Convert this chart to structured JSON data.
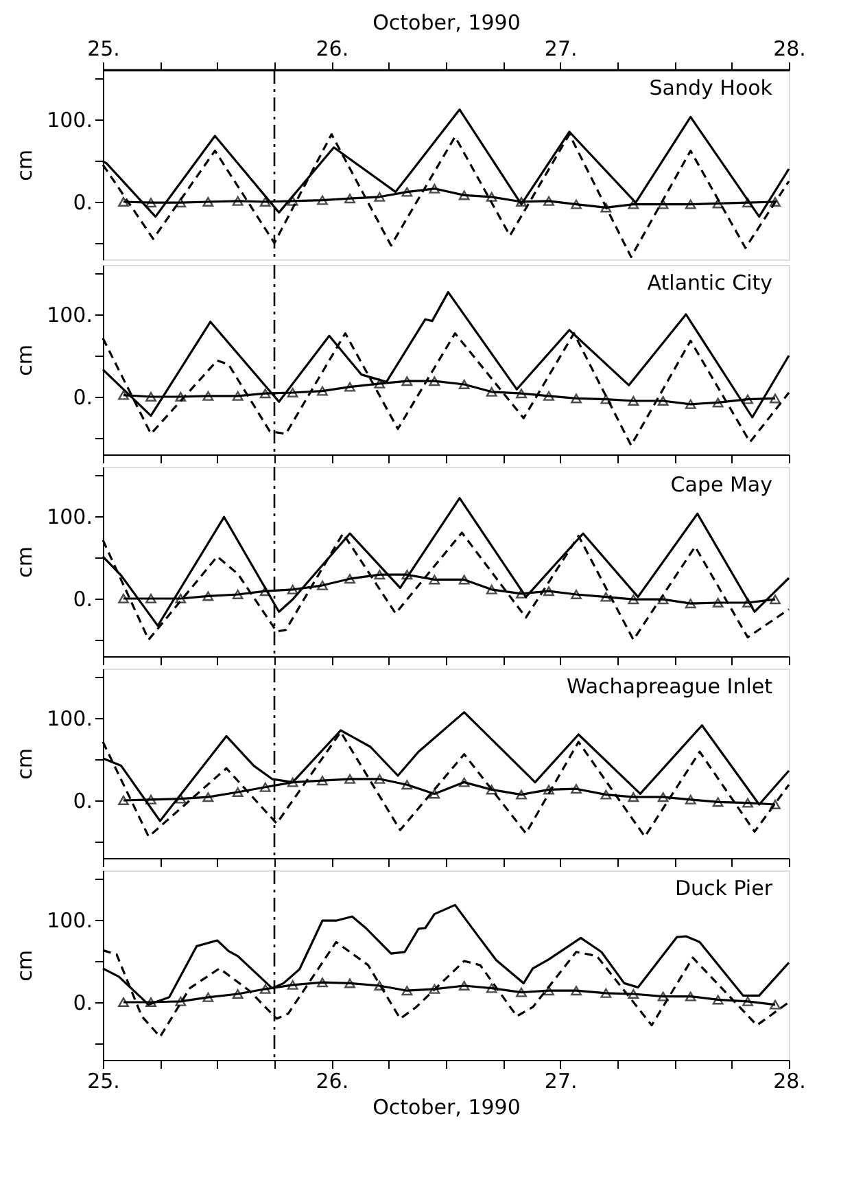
{
  "chart_data": [
    {
      "type": "line",
      "title": "Sandy Hook",
      "ylabel": "cm",
      "x2label": "October, 1990",
      "xlim": [
        25,
        28
      ],
      "x2lim": [
        25,
        28
      ],
      "x2ticks": [
        {
          "value": 25,
          "label": "25."
        },
        {
          "value": 25.25,
          "label": null
        },
        {
          "value": 25.5,
          "label": null
        },
        {
          "value": 25.75,
          "label": null
        },
        {
          "value": 26,
          "label": "26."
        },
        {
          "value": 26.25,
          "label": null
        },
        {
          "value": 26.5,
          "label": null
        },
        {
          "value": 26.75,
          "label": null
        },
        {
          "value": 27,
          "label": "27."
        },
        {
          "value": 27.25,
          "label": null
        },
        {
          "value": 27.5,
          "label": null
        },
        {
          "value": 27.75,
          "label": null
        },
        {
          "value": 28,
          "label": "28."
        }
      ],
      "ylim": [
        -70,
        160
      ],
      "yticks": [
        {
          "value": -50,
          "label": null
        },
        {
          "value": 0,
          "label": "0."
        },
        {
          "value": 50,
          "label": null
        },
        {
          "value": 100,
          "label": "100."
        },
        {
          "value": 150,
          "label": null
        }
      ],
      "ref_lines": [
        {
          "axis": "x",
          "value": 25.75,
          "line_style": "dashed",
          "color": "#000000"
        }
      ],
      "series": [
        {
          "color": "#000000",
          "line_style": "solid",
          "x": [
            25.0,
            25.015,
            25.23,
            25.49,
            25.77,
            26.01,
            26.28,
            26.56,
            26.83,
            27.04,
            27.33,
            27.57,
            27.87,
            28.0
          ],
          "values": [
            49,
            47,
            -18,
            80,
            -13,
            66,
            12,
            112,
            -3,
            85,
            -1,
            103,
            -18,
            40
          ]
        },
        {
          "color": "#000000",
          "line_style": "dashed",
          "x": [
            25.0,
            25.22,
            25.49,
            25.75,
            26.0,
            26.26,
            26.54,
            26.78,
            27.04,
            27.31,
            27.57,
            27.81,
            28.0
          ],
          "values": [
            45,
            -45,
            62,
            -50,
            82,
            -53,
            79,
            -41,
            82,
            -67,
            62,
            -56,
            25
          ]
        },
        {
          "color": "#000000",
          "line_style": "solid",
          "marker": "triangle",
          "x": [
            25.09,
            25.21,
            25.34,
            25.46,
            25.59,
            25.71,
            25.83,
            25.96,
            26.08,
            26.21,
            26.33,
            26.45,
            26.58,
            26.7,
            26.83,
            26.95,
            27.07,
            27.2,
            27.32,
            27.45,
            27.57,
            27.69,
            27.82,
            27.94
          ],
          "values": [
            0,
            -1,
            -1,
            0,
            1,
            0,
            1,
            2,
            4,
            6,
            12,
            16,
            8,
            6,
            0,
            1,
            -3,
            -7,
            -3,
            -3,
            -3,
            -2,
            -1,
            0
          ]
        }
      ]
    },
    {
      "type": "line",
      "title": "Atlantic City",
      "ylabel": "cm",
      "tick_labels": "y",
      "xlim": [
        25,
        28
      ],
      "xticks": [
        {
          "value": 25,
          "label": null
        },
        {
          "value": 25.25,
          "label": null
        },
        {
          "value": 25.5,
          "label": null
        },
        {
          "value": 25.75,
          "label": null
        },
        {
          "value": 26,
          "label": null
        },
        {
          "value": 26.25,
          "label": null
        },
        {
          "value": 26.5,
          "label": null
        },
        {
          "value": 26.75,
          "label": null
        },
        {
          "value": 27,
          "label": null
        },
        {
          "value": 27.25,
          "label": null
        },
        {
          "value": 27.5,
          "label": null
        },
        {
          "value": 27.75,
          "label": null
        },
        {
          "value": 28,
          "label": null
        }
      ],
      "ylim": [
        -70,
        160
      ],
      "yticks": [
        {
          "value": -50,
          "label": null
        },
        {
          "value": 0,
          "label": "0."
        },
        {
          "value": 50,
          "label": null
        },
        {
          "value": 100,
          "label": "100."
        },
        {
          "value": 150,
          "label": null
        }
      ],
      "ref_lines": [
        {
          "axis": "x",
          "value": 25.75,
          "line_style": "dashed",
          "color": "#000000"
        }
      ],
      "series": [
        {
          "color": "#000000",
          "line_style": "solid",
          "x": [
            25.0,
            25.21,
            25.47,
            25.77,
            25.99,
            26.13,
            26.24,
            26.41,
            26.44,
            26.51,
            26.81,
            27.04,
            27.3,
            27.55,
            27.84,
            28.0
          ],
          "values": [
            33,
            -23,
            91,
            -6,
            74,
            27,
            18,
            94,
            92,
            127,
            9,
            81,
            14,
            100,
            -25,
            50
          ]
        },
        {
          "color": "#000000",
          "line_style": "dashed",
          "x": [
            25.0,
            25.21,
            25.5,
            25.55,
            25.73,
            25.8,
            26.06,
            26.29,
            26.54,
            26.84,
            27.06,
            27.31,
            27.57,
            27.83,
            28.0
          ],
          "values": [
            71,
            -45,
            44,
            39,
            -42,
            -45,
            77,
            -39,
            77,
            -26,
            77,
            -59,
            68,
            -55,
            5
          ]
        },
        {
          "color": "#000000",
          "line_style": "solid",
          "marker": "triangle",
          "x": [
            25.09,
            25.21,
            25.34,
            25.46,
            25.59,
            25.71,
            25.83,
            25.96,
            26.08,
            26.21,
            26.33,
            26.45,
            26.58,
            26.7,
            26.83,
            26.95,
            27.07,
            27.2,
            27.32,
            27.45,
            27.57,
            27.69,
            27.82,
            27.94
          ],
          "values": [
            2,
            0,
            0,
            1,
            1,
            4,
            5,
            7,
            12,
            16,
            19,
            19,
            15,
            6,
            4,
            1,
            -2,
            -3,
            -5,
            -5,
            -9,
            -7,
            -3,
            -2
          ]
        }
      ]
    },
    {
      "type": "line",
      "title": "Cape May",
      "ylabel": "cm",
      "tick_labels": "y",
      "xlim": [
        25,
        28
      ],
      "xticks": [
        {
          "value": 25,
          "label": null
        },
        {
          "value": 25.25,
          "label": null
        },
        {
          "value": 25.5,
          "label": null
        },
        {
          "value": 25.75,
          "label": null
        },
        {
          "value": 26,
          "label": null
        },
        {
          "value": 26.25,
          "label": null
        },
        {
          "value": 26.5,
          "label": null
        },
        {
          "value": 26.75,
          "label": null
        },
        {
          "value": 27,
          "label": null
        },
        {
          "value": 27.25,
          "label": null
        },
        {
          "value": 27.5,
          "label": null
        },
        {
          "value": 27.75,
          "label": null
        },
        {
          "value": 28,
          "label": null
        }
      ],
      "ylim": [
        -70,
        160
      ],
      "yticks": [
        {
          "value": -50,
          "label": null
        },
        {
          "value": 0,
          "label": "0."
        },
        {
          "value": 50,
          "label": null
        },
        {
          "value": 100,
          "label": "100."
        },
        {
          "value": 150,
          "label": null
        }
      ],
      "ref_lines": [
        {
          "axis": "x",
          "value": 25.75,
          "line_style": "dashed",
          "color": "#000000"
        }
      ],
      "series": [
        {
          "color": "#000000",
          "line_style": "solid",
          "x": [
            25.0,
            25.08,
            25.24,
            25.53,
            25.77,
            25.83,
            26.08,
            26.3,
            26.56,
            26.85,
            27.1,
            27.34,
            27.6,
            27.85,
            28.0
          ],
          "values": [
            51,
            28,
            -33,
            99,
            -16,
            -1,
            79,
            13,
            122,
            2,
            79,
            2,
            103,
            -16,
            25
          ]
        },
        {
          "color": "#000000",
          "line_style": "dashed",
          "x": [
            25.0,
            25.2,
            25.5,
            25.59,
            25.76,
            25.8,
            26.05,
            26.28,
            26.57,
            26.85,
            27.08,
            27.32,
            27.59,
            27.82,
            28.0
          ],
          "values": [
            71,
            -50,
            51,
            30,
            -40,
            -38,
            79,
            -18,
            80,
            -23,
            76,
            -50,
            63,
            -47,
            -13
          ]
        },
        {
          "color": "#000000",
          "line_style": "solid",
          "marker": "triangle",
          "x": [
            25.09,
            25.21,
            25.34,
            25.46,
            25.59,
            25.71,
            25.83,
            25.96,
            26.08,
            26.21,
            26.33,
            26.45,
            26.58,
            26.7,
            26.83,
            26.95,
            27.07,
            27.2,
            27.32,
            27.45,
            27.57,
            27.69,
            27.82,
            27.94
          ],
          "values": [
            0,
            0,
            0,
            3,
            5,
            9,
            11,
            16,
            24,
            29,
            29,
            23,
            23,
            11,
            6,
            9,
            5,
            2,
            -1,
            -1,
            -6,
            -5,
            -5,
            -1
          ]
        }
      ]
    },
    {
      "type": "line",
      "title": "Wachapreague Inlet",
      "ylabel": "cm",
      "tick_labels": "y",
      "xlim": [
        25,
        28
      ],
      "xticks": [
        {
          "value": 25,
          "label": null
        },
        {
          "value": 25.25,
          "label": null
        },
        {
          "value": 25.5,
          "label": null
        },
        {
          "value": 25.75,
          "label": null
        },
        {
          "value": 26,
          "label": null
        },
        {
          "value": 26.25,
          "label": null
        },
        {
          "value": 26.5,
          "label": null
        },
        {
          "value": 26.75,
          "label": null
        },
        {
          "value": 27,
          "label": null
        },
        {
          "value": 27.25,
          "label": null
        },
        {
          "value": 27.5,
          "label": null
        },
        {
          "value": 27.75,
          "label": null
        },
        {
          "value": 28,
          "label": null
        }
      ],
      "ylim": [
        -70,
        160
      ],
      "yticks": [
        {
          "value": -50,
          "label": null
        },
        {
          "value": 0,
          "label": "0."
        },
        {
          "value": 50,
          "label": null
        },
        {
          "value": 100,
          "label": "100."
        },
        {
          "value": 150,
          "label": null
        }
      ],
      "ref_lines": [
        {
          "axis": "x",
          "value": 25.75,
          "line_style": "dashed",
          "color": "#000000"
        }
      ],
      "series": [
        {
          "color": "#000000",
          "line_style": "solid",
          "x": [
            25.0,
            25.08,
            25.25,
            25.54,
            25.66,
            25.74,
            25.83,
            26.04,
            26.17,
            26.29,
            26.38,
            26.58,
            26.89,
            27.08,
            27.35,
            27.62,
            27.87,
            28.0
          ],
          "values": [
            51,
            42,
            -25,
            78,
            42,
            26,
            22,
            85,
            65,
            30,
            59,
            107,
            22,
            80,
            8,
            91,
            -5,
            36
          ]
        },
        {
          "color": "#000000",
          "line_style": "dashed",
          "x": [
            25.0,
            25.2,
            25.54,
            25.76,
            26.04,
            26.3,
            26.58,
            26.85,
            27.08,
            27.37,
            27.61,
            27.85,
            28.0
          ],
          "values": [
            71,
            -44,
            39,
            -28,
            83,
            -36,
            56,
            -40,
            71,
            -44,
            59,
            -38,
            19
          ]
        },
        {
          "color": "#000000",
          "line_style": "solid",
          "marker": "triangle",
          "x": [
            25.09,
            25.21,
            25.34,
            25.46,
            25.59,
            25.71,
            25.83,
            25.96,
            26.08,
            26.21,
            26.33,
            26.45,
            26.58,
            26.7,
            26.83,
            26.95,
            27.07,
            27.2,
            27.32,
            27.45,
            27.57,
            27.69,
            27.82,
            27.94
          ],
          "values": [
            0,
            1,
            2,
            4,
            10,
            16,
            22,
            24,
            26,
            26,
            19,
            8,
            22,
            13,
            7,
            13,
            14,
            7,
            4,
            4,
            1,
            -2,
            -3,
            -5
          ]
        }
      ]
    },
    {
      "type": "line",
      "title": "Duck Pier",
      "ylabel": "cm",
      "xlabel": "October, 1990",
      "xlim": [
        25,
        28
      ],
      "xticks": [
        {
          "value": 25,
          "label": "25."
        },
        {
          "value": 25.25,
          "label": null
        },
        {
          "value": 25.5,
          "label": null
        },
        {
          "value": 25.75,
          "label": null
        },
        {
          "value": 26,
          "label": "26."
        },
        {
          "value": 26.25,
          "label": null
        },
        {
          "value": 26.5,
          "label": null
        },
        {
          "value": 26.75,
          "label": null
        },
        {
          "value": 27,
          "label": "27."
        },
        {
          "value": 27.25,
          "label": null
        },
        {
          "value": 27.5,
          "label": null
        },
        {
          "value": 27.75,
          "label": null
        },
        {
          "value": 28,
          "label": "28."
        }
      ],
      "ylim": [
        -70,
        160
      ],
      "yticks": [
        {
          "value": -50,
          "label": null
        },
        {
          "value": 0,
          "label": "0."
        },
        {
          "value": 50,
          "label": null
        },
        {
          "value": 100,
          "label": "100."
        },
        {
          "value": 150,
          "label": null
        }
      ],
      "ref_lines": [
        {
          "axis": "x",
          "value": 25.75,
          "line_style": "dashed",
          "color": "#000000"
        }
      ],
      "series": [
        {
          "color": "#000000",
          "line_style": "solid",
          "x": [
            25.0,
            25.07,
            25.2,
            25.29,
            25.41,
            25.5,
            25.55,
            25.59,
            25.74,
            25.79,
            25.86,
            25.96,
            26.02,
            26.09,
            26.15,
            26.26,
            26.32,
            26.38,
            26.41,
            26.45,
            26.54,
            26.62,
            26.72,
            26.84,
            26.88,
            26.95,
            27.09,
            27.18,
            27.28,
            27.34,
            27.51,
            27.55,
            27.61,
            27.8,
            27.87,
            28.0
          ],
          "values": [
            41,
            31,
            -3,
            6,
            68,
            75,
            62,
            56,
            17,
            23,
            40,
            99,
            99,
            104,
            90,
            59,
            61,
            89,
            90,
            107,
            118,
            88,
            51,
            23,
            41,
            52,
            78,
            61,
            23,
            18,
            79,
            80,
            73,
            8,
            8,
            48
          ]
        },
        {
          "color": "#000000",
          "line_style": "dashed",
          "x": [
            25.0,
            25.06,
            25.17,
            25.25,
            25.38,
            25.51,
            25.64,
            25.76,
            25.81,
            26.02,
            26.16,
            26.3,
            26.37,
            26.58,
            26.65,
            26.81,
            26.88,
            27.07,
            27.16,
            27.4,
            27.58,
            27.86,
            28.0
          ],
          "values": [
            63,
            58,
            -17,
            -42,
            17,
            41,
            14,
            -20,
            -14,
            73,
            45,
            -20,
            -6,
            50,
            45,
            -17,
            -6,
            61,
            56,
            -28,
            54,
            -28,
            0
          ]
        },
        {
          "color": "#000000",
          "line_style": "solid",
          "marker": "triangle",
          "x": [
            25.09,
            25.21,
            25.34,
            25.46,
            25.59,
            25.71,
            25.83,
            25.96,
            26.08,
            26.21,
            26.33,
            26.45,
            26.58,
            26.7,
            26.83,
            26.95,
            27.07,
            27.2,
            27.32,
            27.45,
            27.57,
            27.69,
            27.82,
            27.94
          ],
          "values": [
            0,
            0,
            1,
            6,
            10,
            16,
            21,
            24,
            23,
            20,
            14,
            16,
            20,
            17,
            12,
            14,
            14,
            11,
            10,
            7,
            7,
            3,
            1,
            -3
          ]
        }
      ]
    }
  ]
}
